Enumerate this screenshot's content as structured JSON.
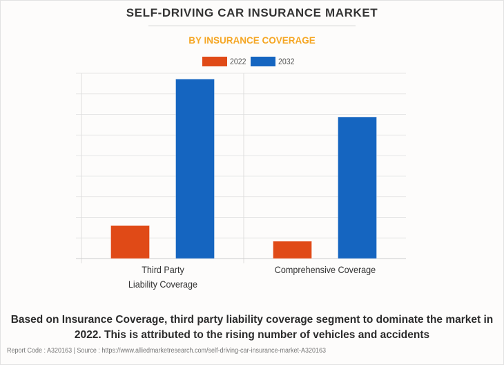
{
  "header": {
    "title": "SELF-DRIVING CAR INSURANCE MARKET",
    "subtitle": "BY INSURANCE COVERAGE"
  },
  "colors": {
    "series_2022": "#e04a17",
    "series_2032": "#1565c0",
    "subtitle": "#f5a623",
    "gridline": "#e6e6e6"
  },
  "chart_data": {
    "type": "bar",
    "title": "SELF-DRIVING CAR INSURANCE MARKET",
    "subtitle": "BY INSURANCE COVERAGE",
    "categories": [
      "Third Party Liability Coverage",
      "Comprehensive Coverage"
    ],
    "category_label_lines": [
      [
        "Third Party",
        "Liability Coverage"
      ],
      [
        "Comprehensive Coverage"
      ]
    ],
    "series": [
      {
        "name": "2022",
        "color": "#e04a17",
        "values": [
          1.6,
          0.84
        ]
      },
      {
        "name": "2032",
        "color": "#1565c0",
        "values": [
          8.72,
          6.88
        ]
      }
    ],
    "xlabel": "",
    "ylabel": "",
    "ylim": [
      0,
      9
    ],
    "y_units": "relative (gridline units, no axis values shown)",
    "gridlines": 9,
    "grid": true,
    "legend": "top-center"
  },
  "caption": {
    "text": "Based on Insurance Coverage, third party liability coverage segment to dominate the market in 2022. This is attributed to the rising number of vehicles and accidents"
  },
  "footer": {
    "text": "Report Code : A320163  |  Source : https://www.alliedmarketresearch.com/self-driving-car-insurance-market-A320163"
  }
}
